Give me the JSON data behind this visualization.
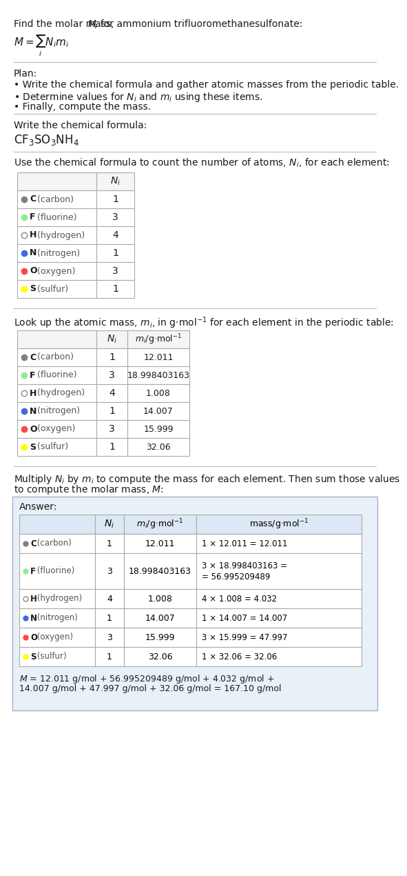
{
  "title_line1": "Find the molar mass, ",
  "title_M": "M",
  "title_line2": ", for ammonium trifluoromethanesulfonate:",
  "formula_eq": "M = ∑ Nᵢmᵢ",
  "formula_sub": "i",
  "plan_header": "Plan:",
  "plan_bullets": [
    "Write the chemical formula and gather atomic masses from the periodic table.",
    "Determine values for Nᵢ and mᵢ using these items.",
    "Finally, compute the mass."
  ],
  "formula_label": "Write the chemical formula:",
  "chemical_formula": "CF₃SO₃NH₄",
  "table1_header": "Use the chemical formula to count the number of atoms, Nᵢ, for each element:",
  "table1_col": "Nᵢ",
  "table1_elements": [
    "C (carbon)",
    "F (fluorine)",
    "H (hydrogen)",
    "N (nitrogen)",
    "O (oxygen)",
    "S (sulfur)"
  ],
  "table1_ni": [
    1,
    3,
    4,
    1,
    3,
    1
  ],
  "element_colors": [
    "#808080",
    "#90EE90",
    "white",
    "#4169E1",
    "#FF4444",
    "#FFFF00"
  ],
  "element_filled": [
    true,
    true,
    false,
    true,
    true,
    true
  ],
  "table2_header": "Look up the atomic mass, mᵢ, in g·mol⁻¹ for each element in the periodic table:",
  "table2_col1": "Nᵢ",
  "table2_col2": "mᵢ/g·mol⁻¹",
  "table2_mi": [
    "12.011",
    "18.998403163",
    "1.008",
    "14.007",
    "15.999",
    "32.06"
  ],
  "table3_header": "Multiply Nᵢ by mᵢ to compute the mass for each element. Then sum those values\nto compute the molar mass, M:",
  "answer_label": "Answer:",
  "table3_col1": "Nᵢ",
  "table3_col2": "mᵢ/g·mol⁻¹",
  "table3_col3": "mass/g·mol⁻¹",
  "table3_mass": [
    "1 × 12.011 = 12.011",
    "3 × 18.998403163 = 56.995209489",
    "4 × 1.008 = 4.032",
    "1 × 14.007 = 14.007",
    "3 × 15.999 = 47.997",
    "1 × 32.06 = 32.06"
  ],
  "final_answer": "M = 12.011 g/mol + 56.995209489 g/mol + 4.032 g/mol +\n14.007 g/mol + 47.997 g/mol + 32.06 g/mol = 167.10 g/mol",
  "bg_color": "#ffffff",
  "answer_box_color": "#e8f0f8",
  "table_line_color": "#cccccc",
  "text_color": "#1a1a1a"
}
